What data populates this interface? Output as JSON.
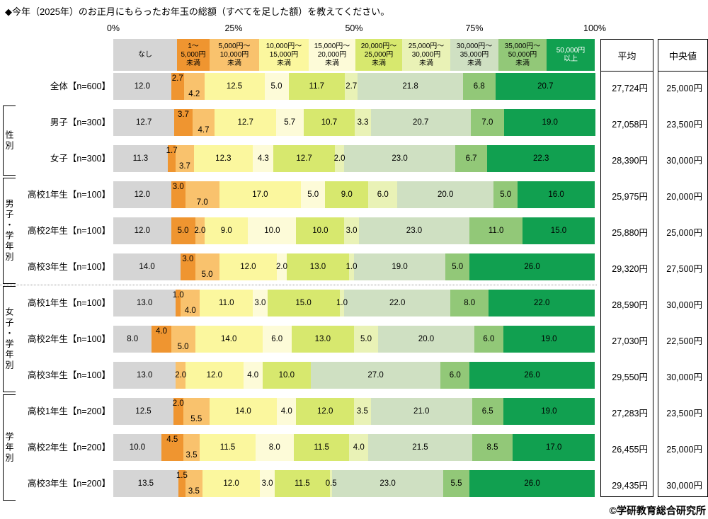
{
  "title": "◆今年（2025年）のお正月にもらったお年玉の総額（すべてを足した額）を教えてください。",
  "columns": {
    "mean_header": "平均",
    "median_header": "中央値"
  },
  "credit": "©学研教育総合研究所",
  "chart_data": {
    "type": "bar",
    "subtype": "horizontal-100pct-stacked",
    "unit": "%",
    "x_ticks": [
      "0%",
      "25%",
      "50%",
      "75%",
      "100%"
    ],
    "x_range": [
      0,
      100
    ],
    "legend_position": "top",
    "categories": [
      {
        "name": "なし",
        "header_lines": [
          "なし"
        ],
        "color": "#d5d5d5",
        "text": "#000000"
      },
      {
        "name": "1～5,000円未満",
        "header_lines": [
          "1～",
          "5,000円",
          "未満"
        ],
        "color": "#ef9530",
        "text": "#000000"
      },
      {
        "name": "5,000円～10,000円未満",
        "header_lines": [
          "5,000円～",
          "10,000円",
          "未満"
        ],
        "color": "#f9c26d",
        "text": "#000000"
      },
      {
        "name": "10,000円～15,000円未満",
        "header_lines": [
          "10,000円～",
          "15,000円",
          "未満"
        ],
        "color": "#fbf79e",
        "text": "#000000"
      },
      {
        "name": "15,000円～20,000円未満",
        "header_lines": [
          "15,000円～",
          "20,000円",
          "未満"
        ],
        "color": "#fdfbd8",
        "text": "#000000"
      },
      {
        "name": "20,000円～25,000円未満",
        "header_lines": [
          "20,000円～",
          "25,000円",
          "未満"
        ],
        "color": "#d7e86e",
        "text": "#000000"
      },
      {
        "name": "25,000円～30,000円未満",
        "header_lines": [
          "25,000円～",
          "30,000円",
          "未満"
        ],
        "color": "#e9f2b6",
        "text": "#000000"
      },
      {
        "name": "30,000円～35,000円未満",
        "header_lines": [
          "30,000円～",
          "35,000円",
          "未満"
        ],
        "color": "#cfe0c2",
        "text": "#000000"
      },
      {
        "name": "35,000円～50,000円未満",
        "header_lines": [
          "35,000円～",
          "50,000円",
          "未満"
        ],
        "color": "#92c878",
        "text": "#000000"
      },
      {
        "name": "50,000円以上",
        "header_lines": [
          "50,000円",
          "以上"
        ],
        "color": "#11a050",
        "text": "#ffffff"
      }
    ],
    "rows": [
      {
        "label": "全体【n=600】",
        "values": [
          12.0,
          2.7,
          4.2,
          12.5,
          5.0,
          11.7,
          2.7,
          21.8,
          6.8,
          20.7
        ],
        "stack_small": true,
        "mean": "27,724円",
        "median": "25,000円"
      },
      {
        "label": "男子【n=300】",
        "values": [
          12.7,
          3.7,
          4.7,
          12.7,
          5.7,
          10.7,
          3.3,
          20.7,
          7.0,
          19.0
        ],
        "stack_small": true,
        "mean": "27,058円",
        "median": "23,500円"
      },
      {
        "label": "女子【n=300】",
        "values": [
          11.3,
          1.7,
          3.7,
          12.3,
          4.3,
          12.7,
          2.0,
          23.0,
          6.7,
          22.3
        ],
        "stack_small": true,
        "mean": "28,390円",
        "median": "30,000円"
      },
      {
        "label": "高校1年生【n=100】",
        "values": [
          12.0,
          3.0,
          7.0,
          17.0,
          5.0,
          9.0,
          6.0,
          20.0,
          5.0,
          16.0
        ],
        "stack_small": true,
        "mean": "25,975円",
        "median": "20,000円"
      },
      {
        "label": "高校2年生【n=100】",
        "values": [
          12.0,
          5.0,
          2.0,
          9.0,
          10.0,
          10.0,
          3.0,
          23.0,
          11.0,
          15.0
        ],
        "stack_small": false,
        "mean": "25,880円",
        "median": "25,000円"
      },
      {
        "label": "高校3年生【n=100】",
        "values": [
          14.0,
          3.0,
          5.0,
          12.0,
          2.0,
          13.0,
          1.0,
          19.0,
          5.0,
          26.0
        ],
        "stack_small": true,
        "mean": "29,320円",
        "median": "27,500円"
      },
      {
        "label": "高校1年生【n=100】",
        "values": [
          13.0,
          1.0,
          4.0,
          11.0,
          3.0,
          15.0,
          1.0,
          22.0,
          8.0,
          22.0
        ],
        "stack_small": true,
        "mean": "28,590円",
        "median": "30,000円"
      },
      {
        "label": "高校2年生【n=100】",
        "values": [
          8.0,
          4.0,
          5.0,
          14.0,
          6.0,
          13.0,
          5.0,
          20.0,
          6.0,
          19.0
        ],
        "stack_small": true,
        "mean": "27,030円",
        "median": "22,500円"
      },
      {
        "label": "高校3年生【n=100】",
        "values": [
          13.0,
          0,
          2.0,
          12.0,
          4.0,
          10.0,
          0,
          27.0,
          6.0,
          26.0
        ],
        "stack_small": false,
        "mean": "29,550円",
        "median": "30,000円"
      },
      {
        "label": "高校1年生【n=200】",
        "values": [
          12.5,
          2.0,
          5.5,
          14.0,
          4.0,
          12.0,
          3.5,
          21.0,
          6.5,
          19.0
        ],
        "stack_small": true,
        "mean": "27,283円",
        "median": "23,500円"
      },
      {
        "label": "高校2年生【n=200】",
        "values": [
          10.0,
          4.5,
          3.5,
          11.5,
          8.0,
          11.5,
          4.0,
          21.5,
          8.5,
          17.0
        ],
        "stack_small": true,
        "mean": "26,455円",
        "median": "25,000円"
      },
      {
        "label": "高校3年生【n=200】",
        "values": [
          13.5,
          1.5,
          3.5,
          12.0,
          3.0,
          11.5,
          0.5,
          23.0,
          5.5,
          26.0
        ],
        "stack_small": true,
        "mean": "29,435円",
        "median": "30,000円"
      }
    ],
    "groups": [
      {
        "label": "性別",
        "from": 1,
        "to": 2
      },
      {
        "label": "男子・学年別",
        "from": 3,
        "to": 5
      },
      {
        "label": "女子・学年別",
        "from": 6,
        "to": 8
      },
      {
        "label": "学年別",
        "from": 9,
        "to": 11
      }
    ]
  }
}
